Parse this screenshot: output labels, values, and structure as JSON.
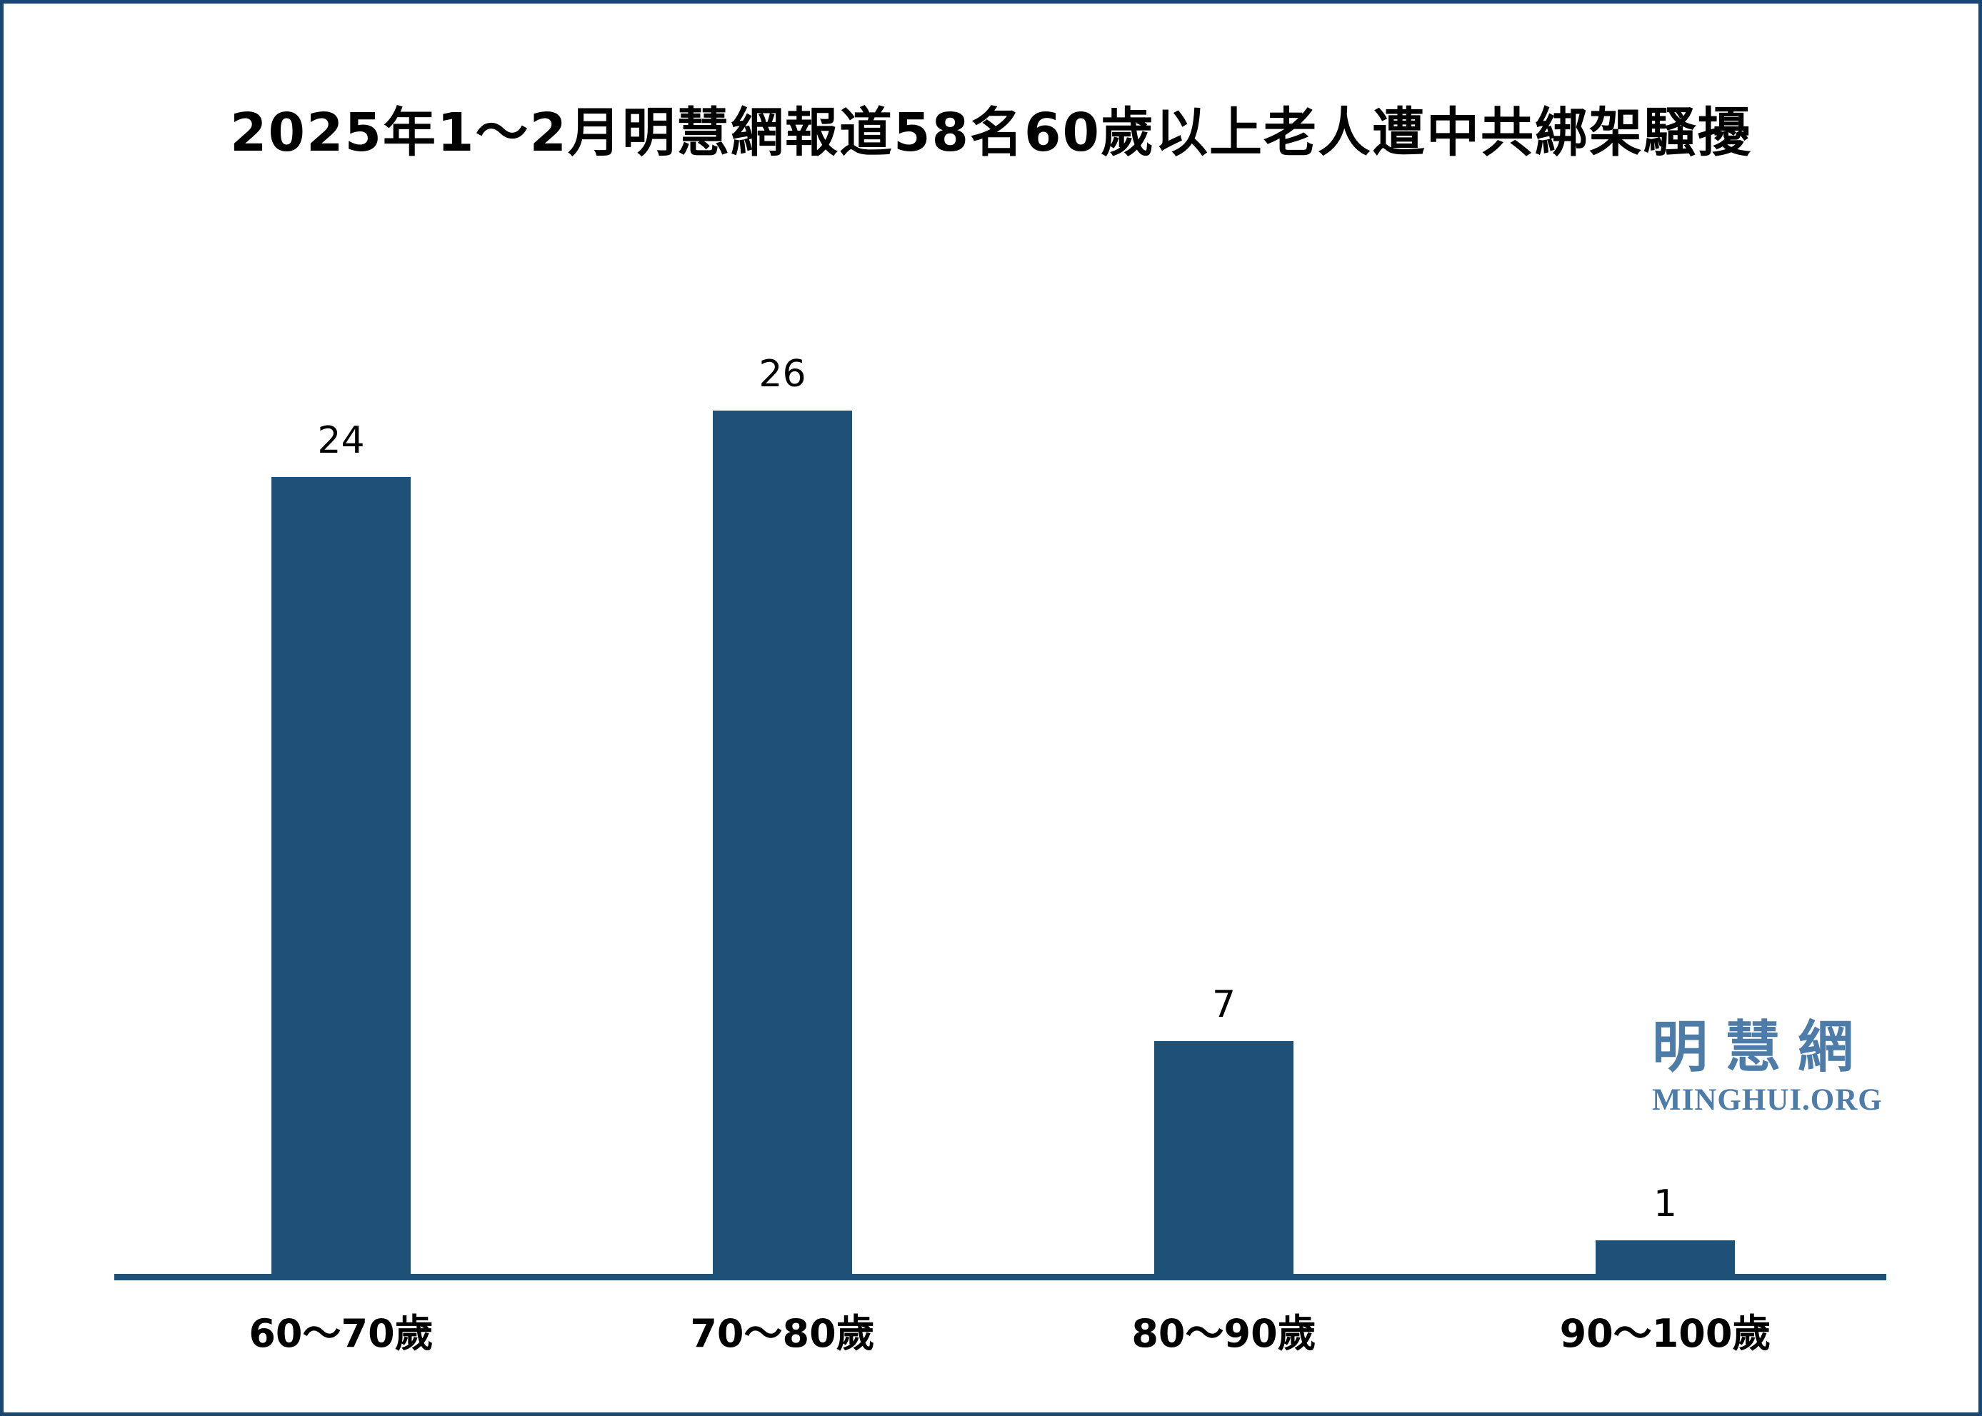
{
  "page": {
    "background": "#ffffff",
    "border_color": "#1b4670"
  },
  "chart_data": {
    "type": "bar",
    "title": "2025年1～2月明慧網報道58名60歲以上老人遭中共綁架騷擾",
    "categories": [
      "60～70歲",
      "70～80歲",
      "80～90歲",
      "90～100歲"
    ],
    "values": [
      24,
      26,
      7,
      1
    ],
    "value_labels": [
      "24",
      "26",
      "7",
      "1"
    ],
    "total_reported": 58,
    "xlabel": "",
    "ylabel": "",
    "ylim": [
      0,
      26
    ],
    "grid": false,
    "legend": false,
    "y_axis_visible": false,
    "bar_color": "#1f5078",
    "axis_line_color": "#1f5078",
    "value_label_color": "#000000",
    "tick_label_color": "#000000",
    "title_color": "#000000"
  },
  "logo": {
    "chinese": "明慧網",
    "domain": "MINGHUI.ORG",
    "color": "#4e7ca8"
  }
}
